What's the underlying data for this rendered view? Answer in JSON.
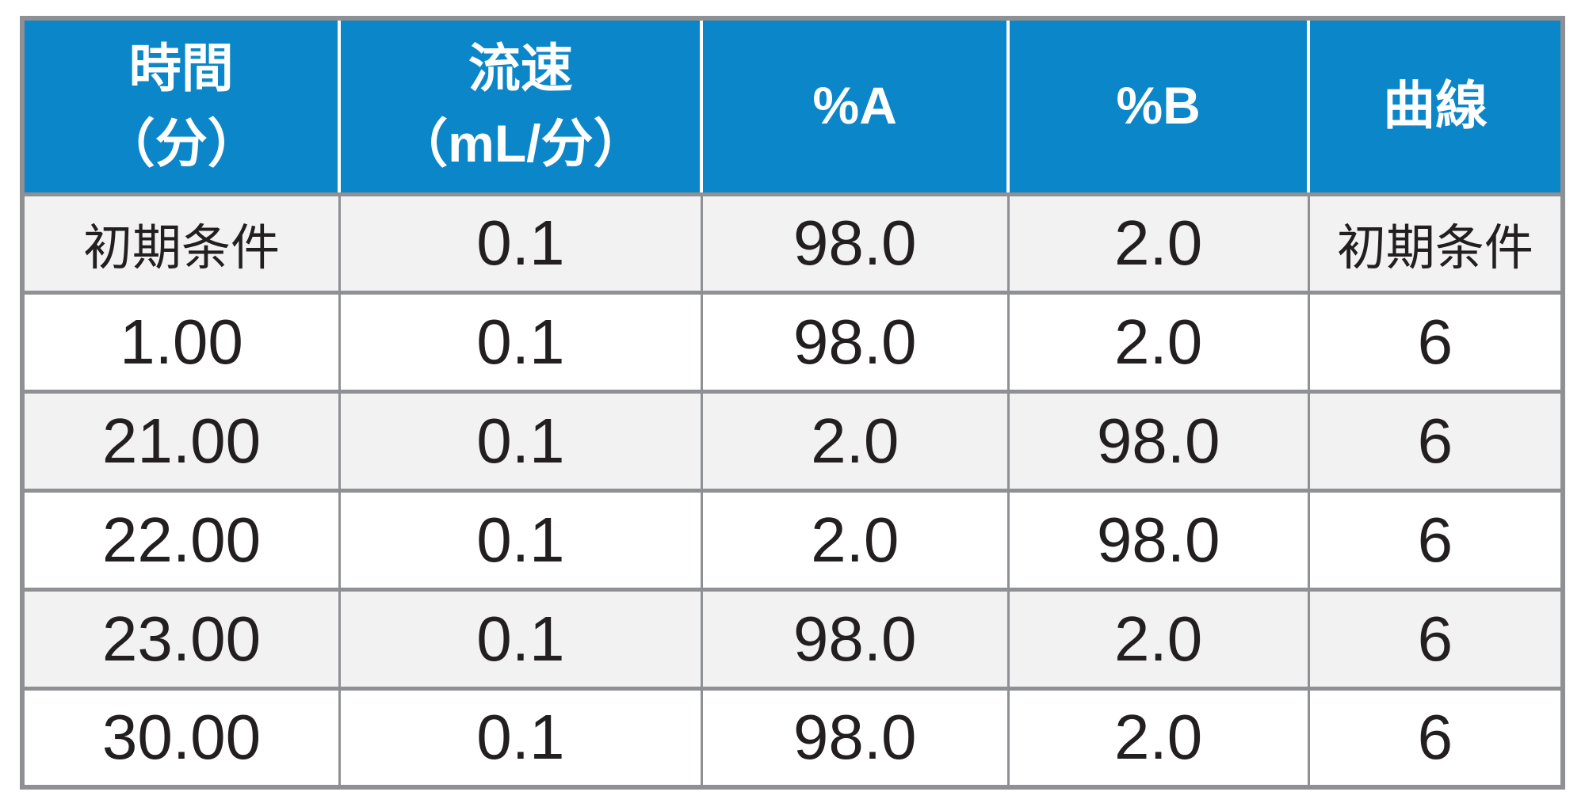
{
  "colors": {
    "header_bg": "#0a86c9",
    "header_text": "#ffffff",
    "row_alt_bg": "#f2f2f3",
    "row_bg": "#ffffff",
    "border": "#8e9093",
    "text": "#231f20"
  },
  "table": {
    "columns": [
      {
        "line1": "時間",
        "line2": "（分）"
      },
      {
        "line1": "流速",
        "line2": "（mL/分）"
      },
      {
        "line1": "%A",
        "line2": ""
      },
      {
        "line1": "%B",
        "line2": ""
      },
      {
        "line1": "曲線",
        "line2": ""
      }
    ],
    "rows": [
      [
        "初期条件",
        "0.1",
        "98.0",
        "2.0",
        "初期条件"
      ],
      [
        "1.00",
        "0.1",
        "98.0",
        "2.0",
        "6"
      ],
      [
        "21.00",
        "0.1",
        "2.0",
        "98.0",
        "6"
      ],
      [
        "22.00",
        "0.1",
        "2.0",
        "98.0",
        "6"
      ],
      [
        "23.00",
        "0.1",
        "98.0",
        "2.0",
        "6"
      ],
      [
        "30.00",
        "0.1",
        "98.0",
        "2.0",
        "6"
      ]
    ]
  },
  "chart_data": {
    "type": "table",
    "title": "",
    "columns": [
      "時間（分）",
      "流速（mL/分）",
      "%A",
      "%B",
      "曲線"
    ],
    "rows": [
      [
        "初期条件",
        "0.1",
        "98.0",
        "2.0",
        "初期条件"
      ],
      [
        "1.00",
        "0.1",
        "98.0",
        "2.0",
        "6"
      ],
      [
        "21.00",
        "0.1",
        "2.0",
        "98.0",
        "6"
      ],
      [
        "22.00",
        "0.1",
        "2.0",
        "98.0",
        "6"
      ],
      [
        "23.00",
        "0.1",
        "98.0",
        "2.0",
        "6"
      ],
      [
        "30.00",
        "0.1",
        "98.0",
        "2.0",
        "6"
      ]
    ]
  }
}
